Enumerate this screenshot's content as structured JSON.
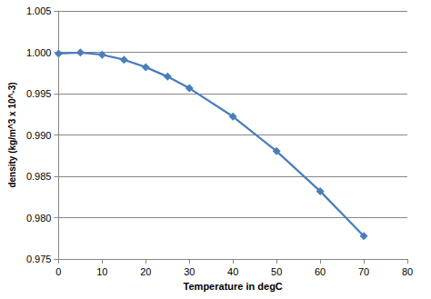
{
  "chart_data": {
    "type": "line",
    "x_label": "Temperature in degC",
    "y_label": "density (kg/m^3 x 10^-3)",
    "x": [
      0,
      5,
      10,
      15,
      20,
      25,
      30,
      40,
      50,
      60,
      70
    ],
    "values": [
      0.99984,
      0.99997,
      0.9997,
      0.9991,
      0.9982,
      0.99705,
      0.99565,
      0.99222,
      0.98804,
      0.9832,
      0.97777
    ],
    "color": "#4a7ebb",
    "marker": "diamond",
    "line_style": "solid",
    "xlim": [
      0,
      80
    ],
    "xticks": [
      0,
      10,
      20,
      30,
      40,
      50,
      60,
      70,
      80
    ],
    "ylim": [
      0.975,
      1.005
    ],
    "yticks": [
      0.975,
      {
        "value": 0.98,
        "label": "0.980"
      },
      0.985,
      {
        "value": 0.99,
        "label": "0.990"
      },
      0.995,
      {
        "value": 1,
        "label": "1.000"
      },
      1.005
    ],
    "grid": "y"
  }
}
